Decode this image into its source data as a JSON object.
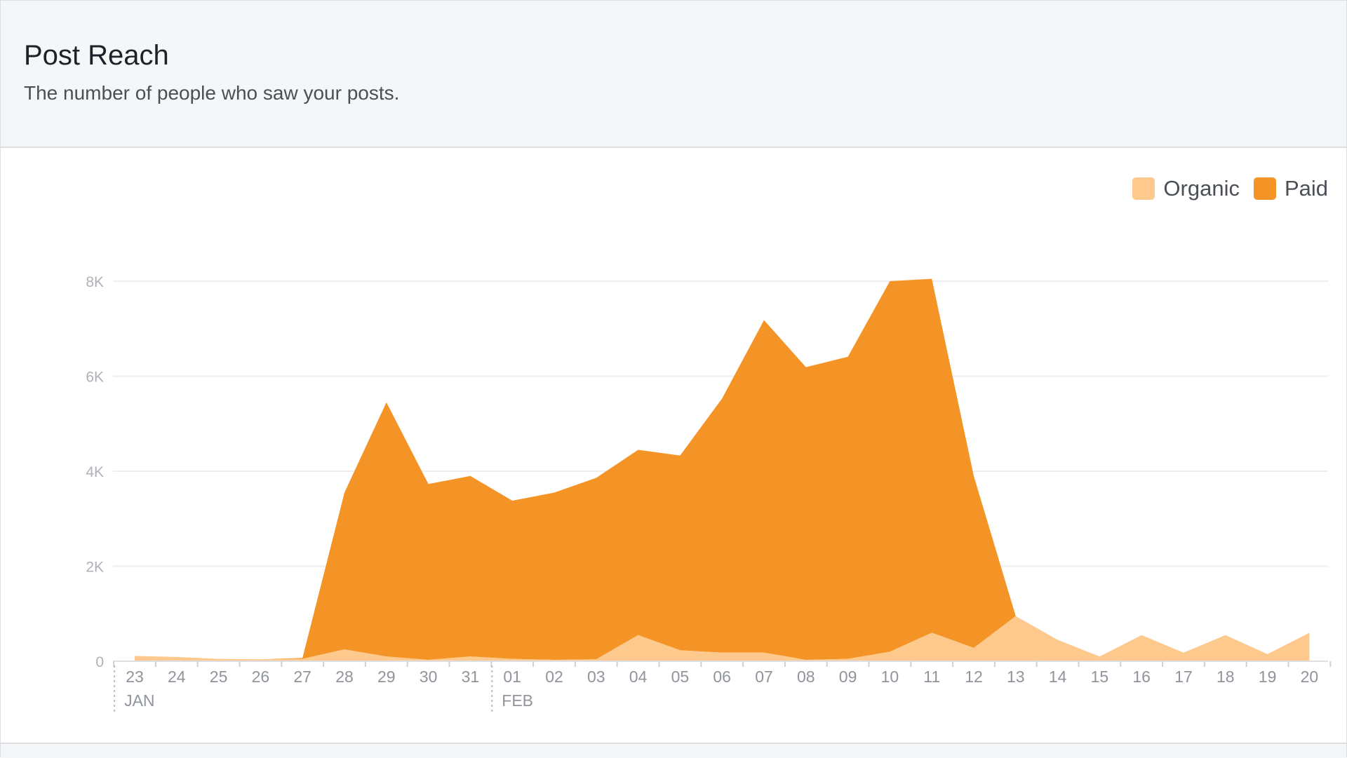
{
  "header": {
    "title": "Post Reach",
    "subtitle": "The number of people who saw your posts."
  },
  "legend": [
    {
      "label": "Organic",
      "color": "#fdc98d"
    },
    {
      "label": "Paid",
      "color": "#f59426"
    }
  ],
  "chart_data": {
    "type": "area",
    "stacked": true,
    "title": "Post Reach",
    "subtitle": "The number of people who saw your posts.",
    "categories": [
      "23",
      "24",
      "25",
      "26",
      "27",
      "28",
      "29",
      "30",
      "31",
      "01",
      "02",
      "03",
      "04",
      "05",
      "06",
      "07",
      "08",
      "09",
      "10",
      "11",
      "12",
      "13",
      "14",
      "15",
      "16",
      "17",
      "18",
      "19",
      "20"
    ],
    "month_labels": [
      {
        "label": "JAN",
        "at": "23"
      },
      {
        "label": "FEB",
        "at": "01"
      }
    ],
    "y_ticks": [
      {
        "value": 0,
        "label": "0"
      },
      {
        "value": 2000,
        "label": "2K"
      },
      {
        "value": 4000,
        "label": "4K"
      },
      {
        "value": 6000,
        "label": "6K"
      },
      {
        "value": 8000,
        "label": "8K"
      }
    ],
    "ylim": [
      0,
      8000
    ],
    "grid": true,
    "legend_position": "top-right",
    "series": [
      {
        "name": "Organic",
        "color": "#fdc98d",
        "values": [
          110,
          90,
          50,
          40,
          50,
          250,
          100,
          30,
          100,
          50,
          30,
          40,
          550,
          230,
          180,
          180,
          30,
          50,
          200,
          600,
          280,
          950,
          450,
          100,
          550,
          180,
          550,
          150,
          600
        ]
      },
      {
        "name": "Paid",
        "color": "#f59426",
        "values": [
          0,
          0,
          0,
          0,
          20,
          3300,
          5350,
          3700,
          3800,
          3330,
          3520,
          3820,
          3900,
          4100,
          5350,
          7000,
          6160,
          6360,
          7800,
          7450,
          3620,
          0,
          0,
          0,
          0,
          0,
          0,
          0,
          0
        ]
      }
    ]
  }
}
